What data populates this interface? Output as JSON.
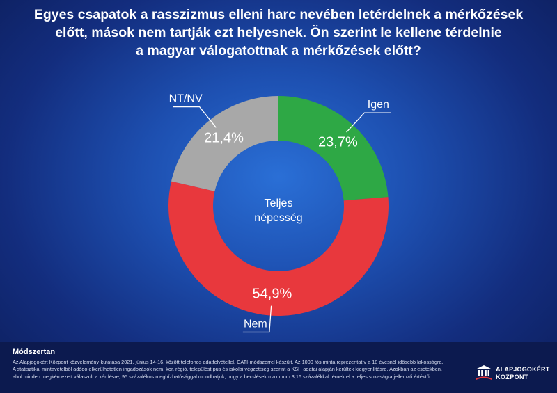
{
  "title_lines": [
    "Egyes csapatok a rasszizmus elleni harc nevében letérdelnek a mérkőzések",
    "előtt, mások nem tartják ezt helyesnek. Ön szerint le kellene térdelnie",
    "a magyar válogatottnak a mérkőzések előtt?"
  ],
  "chart_data": {
    "type": "pie",
    "donut": true,
    "center_label": [
      "Teljes",
      "népesség"
    ],
    "categories": [
      "Igen",
      "Nem",
      "NT/NV"
    ],
    "values": [
      23.7,
      54.9,
      21.4
    ],
    "value_labels": [
      "23,7%",
      "54,9%",
      "21,4%"
    ],
    "colors": [
      "#2ea845",
      "#e8383d",
      "#a8a8a8"
    ],
    "start": "12 o'clock, clockwise"
  },
  "footer": {
    "method_title": "Módszertan",
    "method_text": "Az Alapjogokért Központ közvélemény-kutatása 2021. június 14-16. között telefonos adatfelvétellel, CATI-módszerrel készült. Az 1000 fős minta reprezentatív a 18 évesnél idősebb lakosságra. A statisztikai mintavételből adódó elkerülhetetlen ingadozások nem, kor, régió, településtípus és iskolai végzettség szerint a KSH adatai alapján kerültek kiegyenlítésre. Azokban az esetekben, ahol minden megkérdezett válaszolt a kérdésre, 95 százalékos megbízhatósággal mondhatjuk, hogy a becslések maximum 3,16 százalékkal térnek el a teljes sokaságra jellemző értéktől.",
    "logo_line1": "ALAPJOGOKÉRT",
    "logo_line2": "KÖZPONT"
  }
}
